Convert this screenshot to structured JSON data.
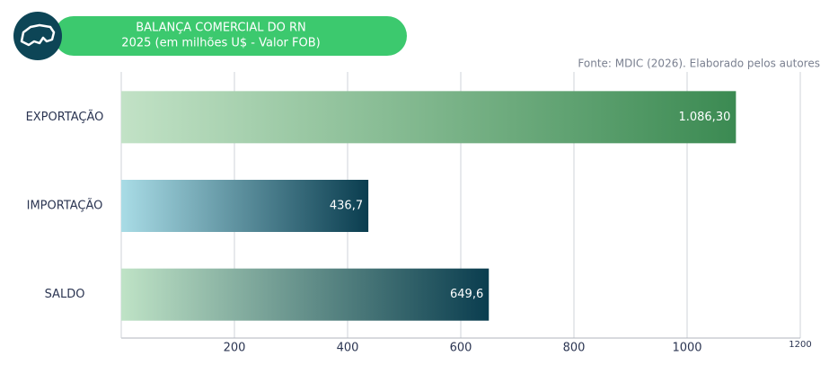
{
  "chart_data": {
    "type": "bar",
    "orientation": "horizontal",
    "title": "BALANÇA COMERCIAL DO RN",
    "subtitle": "2025 (em milhões U$ - Valor FOB)",
    "source": "Fonte: MDIC (2026). Elaborado pelos autores",
    "categories": [
      "EXPORTAÇÃO",
      "IMPORTAÇÃO",
      "SALDO"
    ],
    "values": [
      1086.3,
      436.7,
      649.6
    ],
    "value_labels": [
      "1.086,30",
      "436,7",
      "649,6"
    ],
    "gradients": [
      [
        "#c2e2c6",
        "#3b8a52"
      ],
      [
        "#a9dce6",
        "#0a3d4f"
      ],
      [
        "#bfe3c6",
        "#0a3d4f"
      ]
    ],
    "xlim": [
      0,
      1200
    ],
    "xticks": [
      200,
      400,
      600,
      800,
      1000,
      1200
    ],
    "grid": true
  }
}
